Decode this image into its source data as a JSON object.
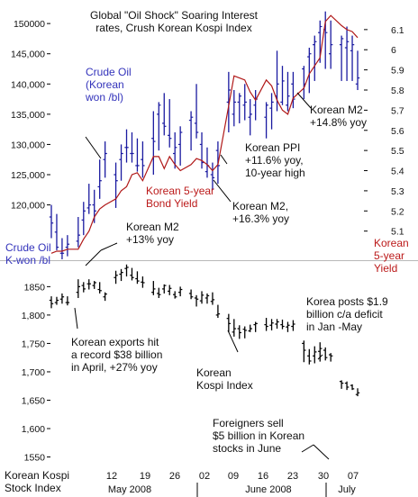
{
  "chart_data": [
    {
      "panel": "top",
      "type": "line",
      "title": "Global \"Oil Shock\" Soaring Interest rates, Crush Korean Kospi Index",
      "title_lines": [
        "Global \"Oil Shock\" Soaring Interest",
        "rates, Crush Korean Kospi Index"
      ],
      "left_axis": {
        "label_lines": [
          "Crude Oil",
          "K-won /bl"
        ],
        "ylim": [
          111000,
          153000
        ],
        "ticks": [
          "120,000",
          "125,000",
          "130,000",
          "135,000",
          "140,000",
          "145,000",
          "150000"
        ],
        "tick_values": [
          120000,
          125000,
          130000,
          135000,
          140000,
          145000,
          150000
        ]
      },
      "right_axis": {
        "label_lines": [
          "Korean",
          "5-year",
          "Yield"
        ],
        "ylim": [
          4.96,
          6.22
        ],
        "ticks": [
          "5.1",
          "5.2",
          "5.3",
          "5.4",
          "5.5",
          "5.6",
          "5.7",
          "5.8",
          "5.9",
          "6",
          "6.1"
        ],
        "tick_values": [
          5.1,
          5.2,
          5.3,
          5.4,
          5.5,
          5.6,
          5.7,
          5.8,
          5.9,
          6.0,
          6.1
        ]
      },
      "series": [
        {
          "name": "Crude Oil (Korean won /bl)",
          "color": "#1a1aa0",
          "style": "high-low bars",
          "x": [
            1,
            2,
            3,
            4,
            6,
            7,
            8,
            9,
            10,
            11,
            13,
            14,
            15,
            16,
            17,
            18,
            20,
            21,
            22,
            23,
            24,
            25,
            27,
            28,
            29,
            30,
            31,
            32,
            34,
            35,
            36,
            37,
            38,
            39,
            41,
            42,
            43,
            44,
            45,
            46,
            48,
            49,
            50,
            51,
            52,
            53,
            55,
            56,
            57,
            58
          ],
          "high": [
            120000,
            118500,
            114500,
            115000,
            118000,
            120500,
            123500,
            122500,
            127500,
            130500,
            127000,
            130000,
            132500,
            132000,
            131000,
            130500,
            135500,
            137000,
            138500,
            137500,
            132000,
            133000,
            135500,
            140000,
            132000,
            129500,
            127000,
            130500,
            142000,
            139000,
            138500,
            140000,
            137500,
            139000,
            137000,
            138500,
            145500,
            143000,
            142000,
            142000,
            143000,
            146000,
            148000,
            150500,
            152000,
            150500,
            148000,
            149500,
            148000,
            145500
          ],
          "low": [
            114500,
            112500,
            111000,
            111500,
            113000,
            115000,
            118500,
            117000,
            121000,
            124500,
            119500,
            124000,
            127000,
            127000,
            125500,
            124500,
            125000,
            129000,
            131500,
            129500,
            126000,
            126500,
            129000,
            131000,
            126000,
            124500,
            122500,
            123500,
            132000,
            133000,
            133500,
            134000,
            131500,
            134000,
            131000,
            132500,
            135500,
            136500,
            135500,
            136000,
            137500,
            138500,
            140500,
            143500,
            142500,
            142500,
            140500,
            140500,
            140500,
            139000
          ],
          "open": [
            118000,
            115500,
            112000,
            113000,
            114000,
            117500,
            119500,
            120000,
            123000,
            127500,
            125000,
            127500,
            129500,
            128500,
            126500,
            127500,
            131000,
            135000,
            133500,
            131500,
            128500,
            130000,
            134000,
            133500,
            130000,
            125500,
            125000,
            129000,
            137000,
            135000,
            137000,
            136500,
            134500,
            136500,
            134500,
            136000,
            138000,
            137000,
            136500,
            140000,
            142500,
            144500,
            146500,
            148500,
            149000,
            145000,
            146500,
            146000,
            145500,
            140000
          ],
          "close": [
            117000,
            113000,
            112000,
            113500,
            115000,
            119000,
            120000,
            119000,
            124000,
            128500,
            124000,
            128500,
            129500,
            128500,
            126500,
            126500,
            130500,
            136500,
            133000,
            131000,
            129500,
            132000,
            134500,
            132000,
            127000,
            126500,
            124500,
            126500,
            139000,
            137000,
            138000,
            137000,
            135000,
            137500,
            136500,
            137000,
            140000,
            140500,
            138000,
            137500,
            140000,
            145000,
            147000,
            149500,
            148500,
            146500,
            147500,
            147000,
            146500,
            141000
          ]
        },
        {
          "name": "Korean 5-year Bond Yield",
          "color": "#b01818",
          "style": "line",
          "x": [
            1,
            2,
            3,
            4,
            6,
            7,
            8,
            9,
            10,
            11,
            13,
            14,
            15,
            16,
            17,
            18,
            20,
            21,
            22,
            23,
            24,
            25,
            27,
            28,
            29,
            30,
            31,
            32,
            34,
            35,
            36,
            37,
            38,
            39,
            41,
            42,
            43,
            44,
            45,
            46,
            48,
            49,
            50,
            51,
            52,
            53,
            55,
            56,
            57,
            58
          ],
          "values": [
            4.99,
            5.0,
            5.0,
            5.01,
            5.01,
            5.06,
            5.1,
            5.17,
            5.21,
            5.23,
            5.26,
            5.3,
            5.32,
            5.38,
            5.39,
            5.35,
            5.47,
            5.47,
            5.41,
            5.47,
            5.43,
            5.4,
            5.43,
            5.46,
            5.45,
            5.43,
            5.4,
            5.43,
            5.72,
            5.87,
            5.86,
            5.85,
            5.79,
            5.75,
            5.85,
            5.82,
            5.75,
            5.7,
            5.68,
            5.76,
            5.81,
            5.88,
            5.92,
            5.96,
            6.14,
            6.17,
            6.12,
            6.1,
            6.09,
            6.06
          ]
        }
      ],
      "annotations": [
        "Crude Oil (Korean won /bl)",
        "Korean 5-year Bond Yield",
        "Korean M2 +13% yoy",
        "Korean PPI +11.6% yoy, 10-year high",
        "Korean M2, +16.3% yoy",
        "Korean M2 +14.8% yoy"
      ]
    },
    {
      "panel": "bottom",
      "type": "line",
      "style": "high-low bars",
      "ylabel_lines": [
        "Korean Kospi",
        "Stock Index"
      ],
      "ylim": [
        1535,
        1895
      ],
      "ticks": [
        "1550",
        "1,600",
        "1,650",
        "1,700",
        "1,750",
        "1,800",
        "1850"
      ],
      "tick_values": [
        1550,
        1600,
        1650,
        1700,
        1750,
        1800,
        1850
      ],
      "x_tick_labels": [
        "12",
        "19",
        "26",
        "02",
        "09",
        "16",
        "23",
        "30",
        "07"
      ],
      "x_group_labels": [
        "May 2008",
        "June 2008",
        "July"
      ],
      "series": [
        {
          "name": "Korean Kospi Index",
          "color": "#000000",
          "x": [
            1,
            2,
            3,
            4,
            6,
            7,
            8,
            9,
            10,
            11,
            13,
            14,
            15,
            16,
            17,
            18,
            20,
            21,
            22,
            23,
            24,
            25,
            27,
            28,
            29,
            30,
            31,
            32,
            34,
            35,
            36,
            37,
            38,
            39,
            41,
            42,
            43,
            44,
            45,
            46,
            48,
            49,
            50,
            51,
            52,
            53,
            55,
            56,
            57,
            58
          ],
          "high": [
            1833,
            1832,
            1838,
            1833,
            1863,
            1858,
            1863,
            1860,
            1858,
            1840,
            1878,
            1881,
            1889,
            1883,
            1877,
            1868,
            1860,
            1848,
            1854,
            1853,
            1842,
            1850,
            1845,
            1835,
            1842,
            1838,
            1840,
            1818,
            1802,
            1793,
            1782,
            1780,
            1783,
            1788,
            1795,
            1793,
            1793,
            1792,
            1788,
            1791,
            1755,
            1740,
            1745,
            1752,
            1743,
            1733,
            1685,
            1683,
            1678,
            1671
          ],
          "low": [
            1812,
            1818,
            1820,
            1817,
            1830,
            1840,
            1845,
            1846,
            1838,
            1825,
            1855,
            1860,
            1868,
            1861,
            1855,
            1848,
            1835,
            1830,
            1838,
            1835,
            1829,
            1833,
            1828,
            1815,
            1820,
            1820,
            1818,
            1795,
            1770,
            1762,
            1758,
            1759,
            1770,
            1770,
            1772,
            1773,
            1776,
            1775,
            1770,
            1772,
            1717,
            1713,
            1715,
            1718,
            1720,
            1718,
            1670,
            1668,
            1668,
            1657
          ],
          "open": [
            1826,
            1822,
            1828,
            1822,
            1840,
            1852,
            1855,
            1852,
            1845,
            1832,
            1866,
            1872,
            1882,
            1870,
            1864,
            1858,
            1840,
            1838,
            1846,
            1842,
            1836,
            1840,
            1838,
            1830,
            1825,
            1830,
            1824,
            1800,
            1794,
            1770,
            1776,
            1775,
            1772,
            1783,
            1783,
            1782,
            1784,
            1783,
            1779,
            1780,
            1750,
            1728,
            1728,
            1736,
            1738,
            1730,
            1683,
            1680,
            1676,
            1660
          ],
          "close": [
            1820,
            1826,
            1832,
            1822,
            1850,
            1846,
            1855,
            1857,
            1843,
            1837,
            1870,
            1875,
            1884,
            1866,
            1860,
            1857,
            1846,
            1836,
            1852,
            1847,
            1832,
            1845,
            1832,
            1828,
            1835,
            1834,
            1827,
            1802,
            1785,
            1776,
            1769,
            1773,
            1776,
            1785,
            1780,
            1786,
            1788,
            1780,
            1782,
            1784,
            1738,
            1719,
            1735,
            1741,
            1725,
            1728,
            1680,
            1673,
            1670,
            1663
          ]
        }
      ],
      "annotations": [
        "Korean exports hit a record $38 billion in April, +27% yoy",
        "Korean Kospi Index",
        "Korea posts $1.9 billion c/a deficit in Jan -May",
        "Foreigners sell $5 billion in Korean stocks in June"
      ]
    }
  ],
  "labels": {
    "crude_oil_lines": [
      "Crude Oil",
      "(Korean",
      "won /bl)"
    ],
    "yield_lines": [
      "Korean 5-year",
      "Bond Yield"
    ],
    "m2_13_lines": [
      "Korean M2",
      "+13% yoy"
    ],
    "ppi_lines": [
      "Korean PPI",
      "+11.6% yoy,",
      "10-year high"
    ],
    "m2_163_lines": [
      "Korean M2,",
      "+16.3% yoy"
    ],
    "m2_148_lines": [
      "Korean M2",
      "+14.8% yoy"
    ],
    "exports_lines": [
      "Korean exports hit",
      "a record $38 billion",
      "in April, +27% yoy"
    ],
    "kospi_lines": [
      "Korean",
      "Kospi Index"
    ],
    "deficit_lines": [
      "Korea posts $1.9",
      "billion c/a deficit",
      "in Jan -May"
    ],
    "foreigners_lines": [
      "Foreigners sell",
      "$5 billion in Korean",
      "stocks in June"
    ]
  },
  "colors": {
    "oil": "#1a1aa0",
    "yield": "#b01818",
    "kospi": "#000000",
    "label_blue": "#3333bb",
    "label_red": "#bb1a1a",
    "text": "#111111",
    "divider": "#b8b8b8"
  }
}
